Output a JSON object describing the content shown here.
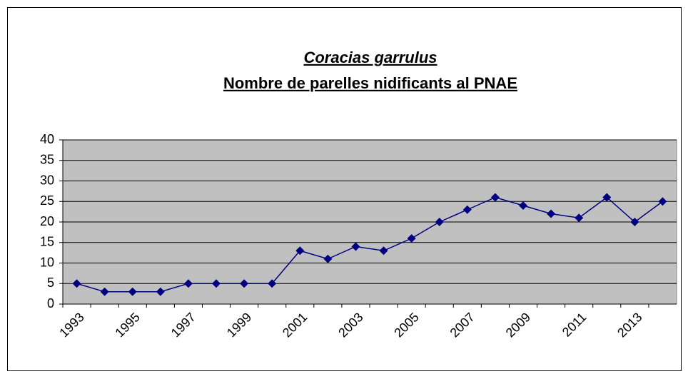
{
  "chart_data": {
    "type": "line",
    "title": "Coracias  garrulus",
    "subtitle": "Nombre  de  parelles  nidificants  al PNAE",
    "categories": [
      "1993",
      null,
      "1995",
      null,
      "1997",
      null,
      "1999",
      null,
      "2001",
      null,
      "2003",
      null,
      "2005",
      null,
      "2007",
      null,
      "2009",
      null,
      "2011",
      null,
      "2013",
      null
    ],
    "values": [
      5,
      3,
      3,
      3,
      5,
      5,
      5,
      5,
      13,
      11,
      14,
      13,
      16,
      20,
      23,
      26,
      24,
      22,
      21,
      26,
      20,
      25
    ],
    "color": "#000080",
    "background": "#c0c0c0",
    "ylim": [
      0,
      40
    ],
    "yticks": [
      0,
      5,
      10,
      15,
      20,
      25,
      30,
      35,
      40
    ],
    "grid": true
  }
}
